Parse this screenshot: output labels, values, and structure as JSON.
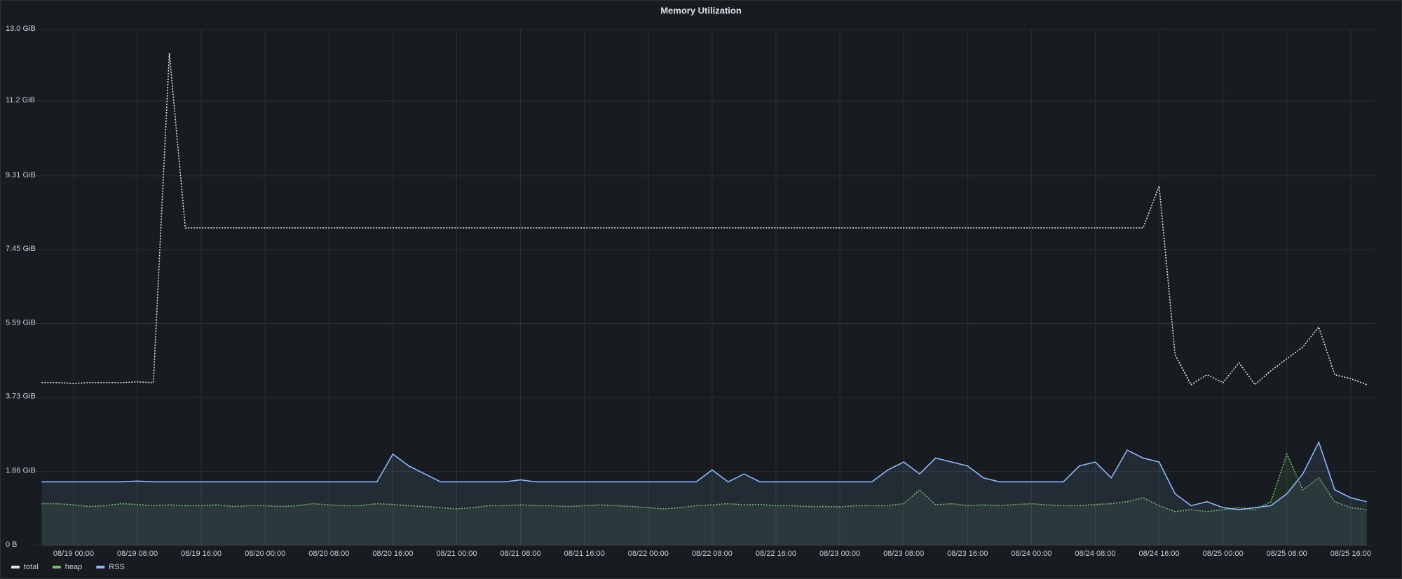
{
  "chart_data": {
    "type": "line",
    "title": "Memory Utilization",
    "xlim": [
      "08/18 19:00",
      "08/25 19:00"
    ],
    "xticks": [
      "08/19 00:00",
      "08/19 08:00",
      "08/19 16:00",
      "08/20 00:00",
      "08/20 08:00",
      "08/20 16:00",
      "08/21 00:00",
      "08/21 08:00",
      "08/21 16:00",
      "08/22 00:00",
      "08/22 08:00",
      "08/22 16:00",
      "08/23 00:00",
      "08/23 08:00",
      "08/23 16:00",
      "08/24 00:00",
      "08/24 08:00",
      "08/24 16:00",
      "08/25 00:00",
      "08/25 08:00",
      "08/25 16:00"
    ],
    "ylim": [
      0,
      13.0
    ],
    "yticks": [
      {
        "value": 0,
        "label": "0 B"
      },
      {
        "value": 1.86,
        "label": "1.86 GiB"
      },
      {
        "value": 3.73,
        "label": "3.73 GiB"
      },
      {
        "value": 5.59,
        "label": "5.59 GiB"
      },
      {
        "value": 7.45,
        "label": "7.45 GiB"
      },
      {
        "value": 9.31,
        "label": "9.31 GiB"
      },
      {
        "value": 11.2,
        "label": "11.2 GiB"
      },
      {
        "value": 13.0,
        "label": "13.0 GiB"
      }
    ],
    "grid": true,
    "legend": "bottom-left",
    "x": [
      "08/18 20:00",
      "08/18 22:00",
      "08/19 00:00",
      "08/19 02:00",
      "08/19 04:00",
      "08/19 06:00",
      "08/19 08:00",
      "08/19 10:00",
      "08/19 12:00",
      "08/19 14:00",
      "08/19 16:00",
      "08/19 18:00",
      "08/19 20:00",
      "08/19 22:00",
      "08/20 00:00",
      "08/20 02:00",
      "08/20 04:00",
      "08/20 06:00",
      "08/20 08:00",
      "08/20 10:00",
      "08/20 12:00",
      "08/20 14:00",
      "08/20 16:00",
      "08/20 18:00",
      "08/20 20:00",
      "08/20 22:00",
      "08/21 00:00",
      "08/21 02:00",
      "08/21 04:00",
      "08/21 06:00",
      "08/21 08:00",
      "08/21 10:00",
      "08/21 12:00",
      "08/21 14:00",
      "08/21 16:00",
      "08/21 18:00",
      "08/21 20:00",
      "08/21 22:00",
      "08/22 00:00",
      "08/22 02:00",
      "08/22 04:00",
      "08/22 06:00",
      "08/22 08:00",
      "08/22 10:00",
      "08/22 12:00",
      "08/22 14:00",
      "08/22 16:00",
      "08/22 18:00",
      "08/22 20:00",
      "08/22 22:00",
      "08/23 00:00",
      "08/23 02:00",
      "08/23 04:00",
      "08/23 06:00",
      "08/23 08:00",
      "08/23 10:00",
      "08/23 12:00",
      "08/23 14:00",
      "08/23 16:00",
      "08/23 18:00",
      "08/23 20:00",
      "08/23 22:00",
      "08/24 00:00",
      "08/24 02:00",
      "08/24 04:00",
      "08/24 06:00",
      "08/24 08:00",
      "08/24 10:00",
      "08/24 12:00",
      "08/24 14:00",
      "08/24 16:00",
      "08/24 18:00",
      "08/24 20:00",
      "08/24 22:00",
      "08/25 00:00",
      "08/25 02:00",
      "08/25 04:00",
      "08/25 06:00",
      "08/25 08:00",
      "08/25 10:00",
      "08/25 12:00",
      "08/25 14:00",
      "08/25 16:00",
      "08/25 18:00"
    ],
    "series": [
      {
        "name": "total",
        "color": "#dce6f5",
        "line_style": "dotted",
        "fill": false,
        "values": [
          4.1,
          4.1,
          4.08,
          4.1,
          4.1,
          4.1,
          4.12,
          4.1,
          12.4,
          8.0,
          8.0,
          8.0,
          8.0,
          8.0,
          8.0,
          8.0,
          8.0,
          8.0,
          8.0,
          8.0,
          8.0,
          8.0,
          8.0,
          8.0,
          8.0,
          8.0,
          8.0,
          8.0,
          8.0,
          8.0,
          8.0,
          8.0,
          8.0,
          8.0,
          8.0,
          8.0,
          8.0,
          8.0,
          8.0,
          8.0,
          8.0,
          8.0,
          8.0,
          8.0,
          8.0,
          8.0,
          8.0,
          8.0,
          8.0,
          8.0,
          8.0,
          8.0,
          8.0,
          8.0,
          8.0,
          8.0,
          8.0,
          8.0,
          8.0,
          8.0,
          8.0,
          8.0,
          8.0,
          8.0,
          8.0,
          8.0,
          8.0,
          8.0,
          8.0,
          8.0,
          9.05,
          4.8,
          4.05,
          4.3,
          4.1,
          4.6,
          4.05,
          4.4,
          4.7,
          5.0,
          5.5,
          4.3,
          4.2,
          4.05
        ]
      },
      {
        "name": "heap",
        "color": "#73bf69",
        "line_style": "dotted",
        "fill": true,
        "values": [
          1.05,
          1.05,
          1.02,
          0.98,
          1.0,
          1.05,
          1.03,
          1.0,
          1.02,
          1.0,
          1.0,
          1.02,
          0.98,
          1.0,
          1.0,
          0.98,
          1.0,
          1.05,
          1.02,
          1.0,
          1.0,
          1.05,
          1.03,
          1.0,
          0.98,
          0.95,
          0.92,
          0.95,
          1.0,
          1.0,
          1.02,
          1.0,
          1.0,
          0.98,
          1.0,
          1.02,
          1.0,
          0.98,
          0.95,
          0.92,
          0.95,
          1.0,
          1.02,
          1.05,
          1.02,
          1.03,
          1.0,
          1.0,
          0.98,
          0.98,
          0.97,
          1.0,
          1.0,
          1.0,
          1.05,
          1.4,
          1.02,
          1.05,
          1.0,
          1.02,
          1.0,
          1.03,
          1.05,
          1.02,
          1.0,
          1.0,
          1.03,
          1.05,
          1.1,
          1.2,
          1.0,
          0.85,
          0.9,
          0.85,
          0.9,
          0.95,
          0.9,
          1.1,
          2.3,
          1.4,
          1.7,
          1.1,
          0.95,
          0.9
        ]
      },
      {
        "name": "RSS",
        "color": "#8ab8ff",
        "line_style": "solid",
        "fill": true,
        "values": [
          1.6,
          1.6,
          1.6,
          1.6,
          1.6,
          1.6,
          1.62,
          1.6,
          1.6,
          1.6,
          1.6,
          1.6,
          1.6,
          1.6,
          1.6,
          1.6,
          1.6,
          1.6,
          1.6,
          1.6,
          1.6,
          1.6,
          2.3,
          2.0,
          1.8,
          1.6,
          1.6,
          1.6,
          1.6,
          1.6,
          1.65,
          1.6,
          1.6,
          1.6,
          1.6,
          1.6,
          1.6,
          1.6,
          1.6,
          1.6,
          1.6,
          1.6,
          1.9,
          1.6,
          1.8,
          1.6,
          1.6,
          1.6,
          1.6,
          1.6,
          1.6,
          1.6,
          1.6,
          1.9,
          2.1,
          1.8,
          2.2,
          2.1,
          2.0,
          1.7,
          1.6,
          1.6,
          1.6,
          1.6,
          1.6,
          2.0,
          2.1,
          1.7,
          2.4,
          2.2,
          2.1,
          1.3,
          1.0,
          1.1,
          0.95,
          0.9,
          0.95,
          1.0,
          1.3,
          1.8,
          2.6,
          1.4,
          1.2,
          1.1
        ]
      }
    ]
  }
}
